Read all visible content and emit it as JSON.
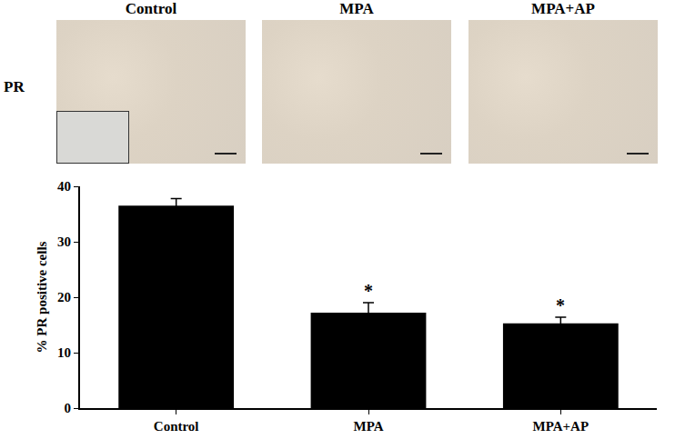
{
  "image_panels": {
    "row_label": "PR",
    "labels": [
      "Control",
      "MPA",
      "MPA+AP"
    ]
  },
  "chart_data": {
    "type": "bar",
    "categories": [
      "Control",
      "MPA",
      "MPA+AP"
    ],
    "values": [
      36.5,
      17.2,
      15.3
    ],
    "errors": [
      1.3,
      1.8,
      1.1
    ],
    "color": "#000000",
    "y_label": "% PR positive cells",
    "ylim": [
      0,
      40
    ],
    "yticks": [
      0,
      10,
      20,
      30,
      40
    ],
    "grid": false,
    "annotations": [
      {
        "category": "MPA",
        "text": "*"
      },
      {
        "category": "MPA+AP",
        "text": "*"
      }
    ]
  }
}
